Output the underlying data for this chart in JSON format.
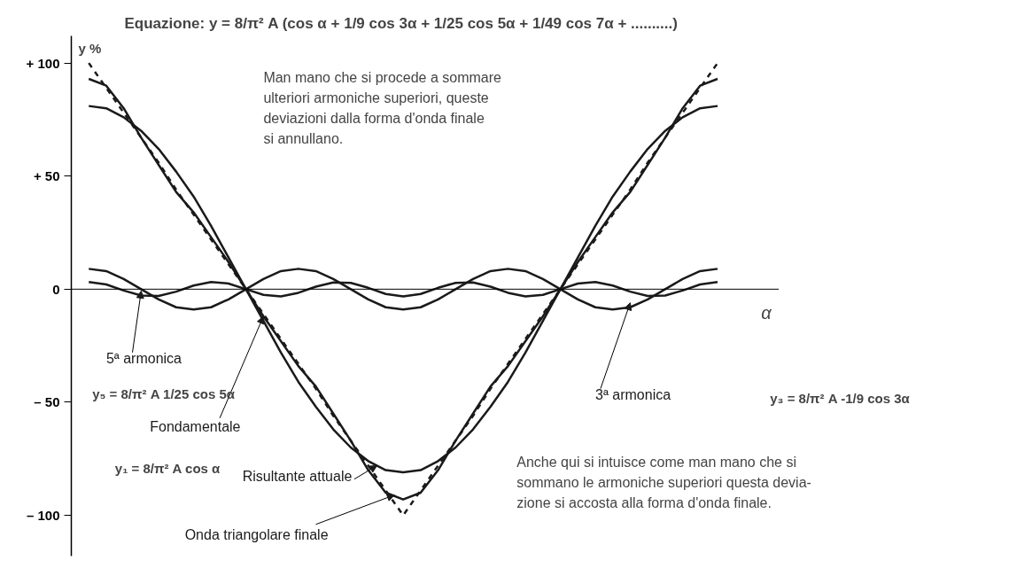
{
  "chart_data": {
    "type": "line",
    "title": "Equazione:   y = 8/π² A (cos α + 1/9 cos 3α + 1/25 cos 5α + 1/49 cos 7α + ..........)",
    "xlabel": "α",
    "ylabel": "y %",
    "categories": [
      null,
      null,
      null,
      null,
      null,
      null,
      null,
      null,
      null,
      null,
      null,
      null,
      null,
      null,
      null,
      null,
      null,
      null,
      null,
      null,
      null,
      null,
      null,
      null,
      null,
      null,
      null,
      null,
      null,
      null,
      null,
      null,
      null,
      null,
      null,
      null,
      null
    ],
    "ylim": [
      -118,
      112
    ],
    "yticks": [
      {
        "value": 100,
        "label": "+ 100"
      },
      {
        "value": 50,
        "label": "+ 50"
      },
      0,
      {
        "value": -50,
        "label": "– 50"
      },
      {
        "value": -100,
        "label": "– 100"
      }
    ],
    "tick_labels": "y",
    "marker": "none",
    "series": [
      {
        "name": "Fondamentale",
        "color": "#1a1a1a",
        "values": [
          81,
          80,
          76,
          70,
          62,
          52,
          41,
          28,
          14,
          0,
          -14,
          -28,
          -41,
          -52,
          -62,
          -70,
          -76,
          -80,
          -81,
          -80,
          -76,
          -70,
          -62,
          -52,
          -41,
          -28,
          -14,
          0,
          14,
          28,
          41,
          52,
          62,
          70,
          76,
          80,
          81
        ]
      },
      {
        "name": "3ª armonica",
        "color": "#1a1a1a",
        "values": [
          9,
          8,
          4.5,
          0,
          -4.5,
          -8,
          -9,
          -8,
          -4.5,
          0,
          4.5,
          8,
          9,
          8,
          4.5,
          0,
          -4.5,
          -8,
          -9,
          -8,
          -4.5,
          0,
          4.5,
          8,
          9,
          8,
          4.5,
          0,
          -4.5,
          -8,
          -9,
          -8,
          -4.5,
          0,
          4.5,
          8,
          9
        ]
      },
      {
        "name": "5ª armonica",
        "color": "#1a1a1a",
        "values": [
          3.2,
          2.1,
          -0.6,
          -2.8,
          -3.0,
          -1.1,
          1.6,
          3.2,
          2.5,
          0,
          -2.5,
          -3.2,
          -1.6,
          1.1,
          3.0,
          2.8,
          0.6,
          -2.1,
          -3.2,
          -2.1,
          0.6,
          2.8,
          3.0,
          1.1,
          -1.6,
          -3.2,
          -2.5,
          0,
          2.5,
          3.2,
          1.6,
          -1.1,
          -3.0,
          -2.8,
          -0.6,
          2.1,
          3.2
        ]
      },
      {
        "name": "Risultante attuale",
        "color": "#1a1a1a",
        "values": [
          93,
          90,
          80,
          67,
          55,
          43,
          34,
          23,
          12,
          0,
          -12,
          -23,
          -34,
          -43,
          -55,
          -67,
          -80,
          -90,
          -93,
          -90,
          -80,
          -67,
          -55,
          -43,
          -34,
          -23,
          -12,
          0,
          12,
          23,
          34,
          43,
          55,
          67,
          80,
          90,
          93
        ]
      },
      {
        "name": "Onda triangolare finale",
        "color": "#1a1a1a",
        "line_style": "dashed",
        "values": [
          100,
          89,
          78,
          67,
          56,
          44,
          33,
          22,
          11,
          0,
          -11,
          -22,
          -33,
          -44,
          -56,
          -67,
          -78,
          -89,
          -100,
          -89,
          -78,
          -67,
          -56,
          -44,
          -33,
          -22,
          -11,
          0,
          11,
          22,
          33,
          44,
          56,
          67,
          78,
          89,
          100
        ]
      }
    ],
    "annotations": [
      "Man mano che si procede a sommare\nulteriori armoniche superiori, queste\ndeviazioni dalla forma d'onda finale\nsi annullano.",
      "Anche qui si intuisce come man mano che si\nsommano le armoniche superiori questa devia-\nzione si accosta alla forma d'onda finale.",
      "y₅ = 8/π² A 1/25 cos 5α",
      "y₁ = 8/π² A cos α",
      "y₃ = 8/π² A -1/9 cos 3α"
    ]
  }
}
